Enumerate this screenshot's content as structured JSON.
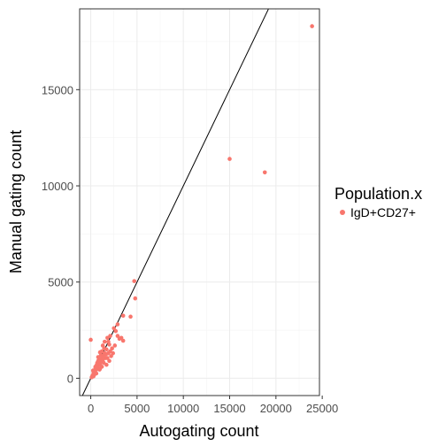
{
  "chart_data": {
    "type": "scatter",
    "title": "",
    "xlabel": "Autogating count",
    "ylabel": "Manual gating count",
    "xlim": [
      -1200,
      24700
    ],
    "ylim": [
      -900,
      19200
    ],
    "xticks": [
      0,
      5000,
      10000,
      15000,
      20000,
      25000
    ],
    "xtick_labels": [
      "0",
      "5000",
      "10000",
      "15000",
      "20000",
      "25000"
    ],
    "yticks": [
      0,
      5000,
      10000,
      15000
    ],
    "ytick_labels": [
      "0",
      "5000",
      "10000",
      "15000"
    ],
    "grid": true,
    "legend": {
      "title": "Population.x",
      "position": "right",
      "entries": [
        "IgD+CD27+"
      ]
    },
    "reference_line": {
      "type": "identity",
      "slope": 1,
      "intercept": 0,
      "color": "#000000"
    },
    "series": [
      {
        "name": "IgD+CD27+",
        "color": "#F8766D",
        "points": [
          [
            23900,
            18300
          ],
          [
            15000,
            11400
          ],
          [
            18800,
            10700
          ],
          [
            4700,
            5050
          ],
          [
            4800,
            4150
          ],
          [
            4300,
            3200
          ],
          [
            3500,
            3250
          ],
          [
            2900,
            2800
          ],
          [
            2500,
            2600
          ],
          [
            2700,
            2450
          ],
          [
            2900,
            2200
          ],
          [
            3300,
            2100
          ],
          [
            3500,
            1950
          ],
          [
            3100,
            2050
          ],
          [
            2100,
            2200
          ],
          [
            1800,
            2100
          ],
          [
            2000,
            1750
          ],
          [
            1500,
            1900
          ],
          [
            1300,
            1700
          ],
          [
            1700,
            1500
          ],
          [
            1500,
            1300
          ],
          [
            1200,
            1400
          ],
          [
            1100,
            1200
          ],
          [
            1900,
            1300
          ],
          [
            2300,
            1550
          ],
          [
            2200,
            1150
          ],
          [
            1600,
            1050
          ],
          [
            900,
            1000
          ],
          [
            800,
            900
          ],
          [
            1300,
            950
          ],
          [
            1000,
            700
          ],
          [
            700,
            800
          ],
          [
            1100,
            850
          ],
          [
            500,
            600
          ],
          [
            600,
            450
          ],
          [
            800,
            500
          ],
          [
            400,
            350
          ],
          [
            300,
            300
          ],
          [
            600,
            250
          ],
          [
            400,
            200
          ],
          [
            200,
            150
          ],
          [
            300,
            100
          ],
          [
            150,
            80
          ],
          [
            100,
            50
          ],
          [
            0,
            2000
          ],
          [
            1000,
            500
          ],
          [
            1700,
            700
          ],
          [
            2000,
            900
          ],
          [
            1400,
            800
          ],
          [
            800,
            1100
          ],
          [
            1200,
            600
          ],
          [
            500,
            550
          ],
          [
            250,
            400
          ],
          [
            1800,
            1050
          ],
          [
            2400,
            1300
          ],
          [
            1450,
            1550
          ],
          [
            1150,
            1000
          ],
          [
            650,
            700
          ],
          [
            950,
            450
          ],
          [
            1350,
            1150
          ],
          [
            1650,
            1250
          ],
          [
            2600,
            1700
          ],
          [
            1900,
            1900
          ],
          [
            2100,
            1400
          ],
          [
            1000,
            1350
          ],
          [
            700,
            600
          ],
          [
            450,
            300
          ]
        ]
      }
    ]
  }
}
